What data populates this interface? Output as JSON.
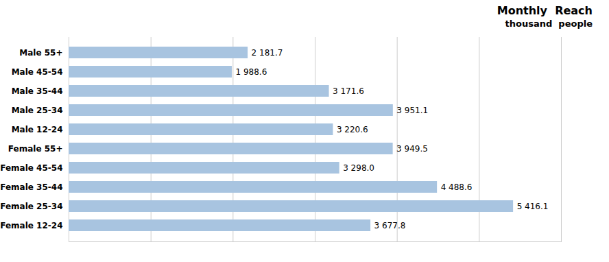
{
  "chart_data": {
    "type": "bar",
    "orientation": "horizontal",
    "title": "Monthly  Reach",
    "subtitle": "thousand  people",
    "categories": [
      "Male 55+",
      "Male 45-54",
      "Male 35-44",
      "Male 25-34",
      "Male 12-24",
      "Female 55+",
      "Female 45-54",
      "Female 35-44",
      "Female 25-34",
      "Female 12-24"
    ],
    "values": [
      2181.7,
      1988.6,
      3171.6,
      3951.1,
      3220.6,
      3949.5,
      3298.0,
      4488.6,
      5416.1,
      3677.8
    ],
    "value_labels": [
      "2 181.7",
      "1 988.6",
      "3 171.6",
      "3 951.1",
      "3 220.6",
      "3 949.5",
      "3 298.0",
      "4 488.6",
      "5 416.1",
      "3 677.8"
    ],
    "color": "#a8c4e0",
    "xlim": [
      0,
      6000
    ],
    "xticks": [
      0,
      1000,
      2000,
      3000,
      4000,
      5000,
      6000
    ],
    "grid": true,
    "data_labels": true,
    "tick_labels": "y"
  }
}
